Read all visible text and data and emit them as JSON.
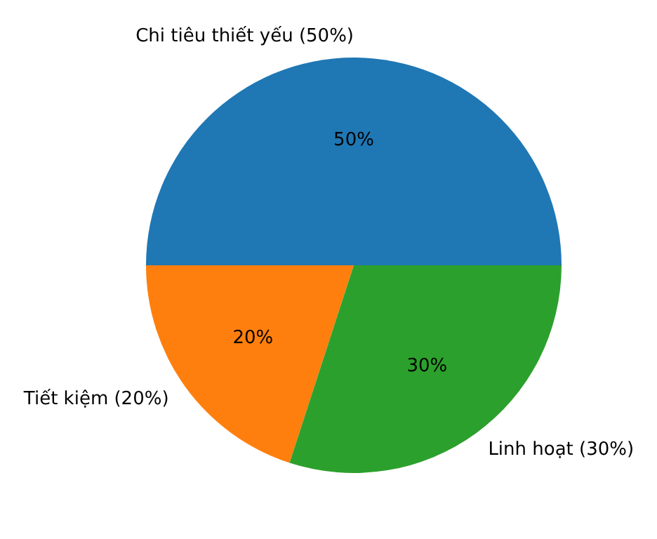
{
  "chart_data": {
    "type": "pie",
    "categories": [
      "Chi tiêu thiết yếu (50%)",
      "Tiết kiệm (20%)",
      "Linh hoạt (30%)"
    ],
    "values": [
      50,
      20,
      30
    ],
    "colors": [
      "#1f77b4",
      "#ff7f0e",
      "#2ca02c"
    ],
    "value_labels": [
      "50%",
      "20%",
      "30%"
    ]
  }
}
